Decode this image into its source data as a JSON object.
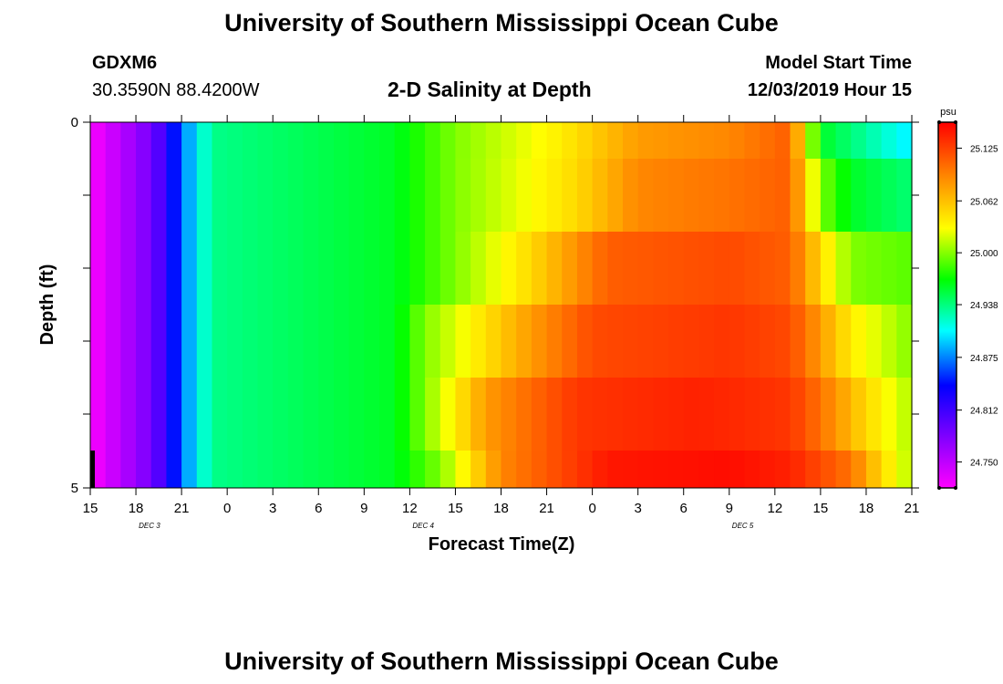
{
  "header": {
    "title": "University of Southern Mississippi Ocean Cube",
    "station_id": "GDXM6",
    "coordinates": "30.3590N 88.4200W",
    "plot_title": "2-D Salinity at Depth",
    "model_start_label": "Model Start Time",
    "model_start_value": "12/03/2019 Hour 15"
  },
  "footer": {
    "title": "University of Southern Mississippi Ocean Cube"
  },
  "chart_data": {
    "type": "heatmap",
    "title": "2-D Salinity at Depth",
    "xlabel": "Forecast Time(Z)",
    "ylabel": "Depth (ft)",
    "y_tick_labels": [
      "0",
      "5"
    ],
    "ylim": [
      0,
      5
    ],
    "y_inverted": true,
    "x_tick_labels": [
      "15",
      "18",
      "21",
      "0",
      "3",
      "6",
      "9",
      "12",
      "15",
      "18",
      "21",
      "0",
      "3",
      "6",
      "9",
      "12",
      "15",
      "18",
      "21"
    ],
    "x_date_labels": [
      {
        "text": "DEC 3",
        "after_tick_index": 1
      },
      {
        "text": "DEC 4",
        "after_tick_index": 7
      },
      {
        "text": "DEC 5",
        "after_tick_index": 14
      }
    ],
    "x_hours_range": [
      0,
      54
    ],
    "depth_rows": 5,
    "colorbar": {
      "unit": "psu",
      "range": [
        24.719,
        25.156
      ],
      "ticks": [
        "25.125",
        "25.062",
        "25.000",
        "24.938",
        "24.875",
        "24.812",
        "24.750"
      ],
      "colors": [
        "#ff00ff",
        "#8000ff",
        "#0000ff",
        "#00ffff",
        "#00ff00",
        "#ffff00",
        "#ff8000",
        "#ff0000"
      ]
    },
    "keypoints_by_row": [
      [
        [
          0,
          24.72
        ],
        [
          4.2,
          24.79
        ],
        [
          6,
          24.87
        ],
        [
          8,
          24.935
        ],
        [
          20,
          24.96
        ],
        [
          24,
          25.0
        ],
        [
          31,
          25.04
        ],
        [
          36,
          25.08
        ],
        [
          42,
          25.09
        ],
        [
          46,
          25.11
        ],
        [
          48,
          24.96
        ],
        [
          50,
          24.94
        ],
        [
          54,
          24.9
        ]
      ],
      [
        [
          0,
          24.72
        ],
        [
          4.2,
          24.79
        ],
        [
          6,
          24.87
        ],
        [
          8,
          24.935
        ],
        [
          20,
          24.96
        ],
        [
          24,
          25.0
        ],
        [
          32,
          25.05
        ],
        [
          36,
          25.09
        ],
        [
          42,
          25.1
        ],
        [
          46,
          25.11
        ],
        [
          48,
          25.0
        ],
        [
          50,
          24.96
        ],
        [
          54,
          24.94
        ]
      ],
      [
        [
          0,
          24.72
        ],
        [
          4.2,
          24.79
        ],
        [
          6,
          24.87
        ],
        [
          8,
          24.935
        ],
        [
          20,
          24.96
        ],
        [
          24,
          25.0
        ],
        [
          29,
          25.05
        ],
        [
          34,
          25.11
        ],
        [
          42,
          25.12
        ],
        [
          46,
          25.11
        ],
        [
          48,
          25.05
        ],
        [
          50,
          25.0
        ],
        [
          54,
          24.99
        ]
      ],
      [
        [
          0,
          24.72
        ],
        [
          4.2,
          24.79
        ],
        [
          6,
          24.87
        ],
        [
          8,
          24.935
        ],
        [
          20,
          24.96
        ],
        [
          22,
          25.0
        ],
        [
          28,
          25.07
        ],
        [
          33,
          25.12
        ],
        [
          42,
          25.13
        ],
        [
          46,
          25.12
        ],
        [
          48,
          25.08
        ],
        [
          50,
          25.04
        ],
        [
          54,
          25.0
        ]
      ],
      [
        [
          0,
          24.72
        ],
        [
          4.2,
          24.79
        ],
        [
          6,
          24.87
        ],
        [
          8,
          24.935
        ],
        [
          20,
          24.96
        ],
        [
          22,
          25.0
        ],
        [
          26,
          25.08
        ],
        [
          32,
          25.13
        ],
        [
          40,
          25.14
        ],
        [
          46,
          25.13
        ],
        [
          48,
          25.1
        ],
        [
          51,
          25.05
        ],
        [
          54,
          25.01
        ]
      ],
      [
        [
          0,
          24.72
        ],
        [
          4.2,
          24.79
        ],
        [
          6,
          24.87
        ],
        [
          8,
          24.935
        ],
        [
          20,
          24.96
        ],
        [
          23,
          25.0
        ],
        [
          27,
          25.09
        ],
        [
          34,
          25.145
        ],
        [
          42,
          25.15
        ],
        [
          46,
          25.14
        ],
        [
          50,
          25.1
        ],
        [
          52,
          25.05
        ],
        [
          54,
          25.01
        ]
      ]
    ]
  }
}
